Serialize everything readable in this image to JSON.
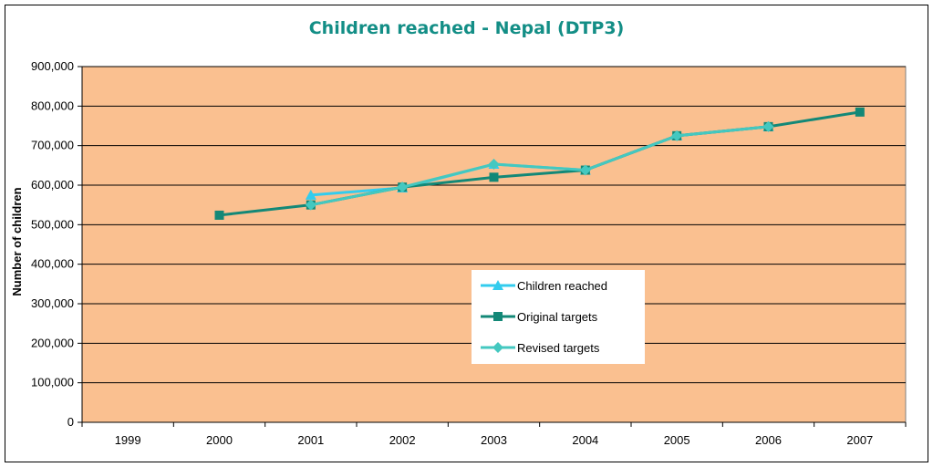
{
  "chart_data": {
    "type": "line",
    "title": "Children reached - Nepal (DTP3)",
    "xlabel": "",
    "ylabel": "Number of children",
    "categories": [
      "1999",
      "2000",
      "2001",
      "2002",
      "2003",
      "2004",
      "2005",
      "2006",
      "2007"
    ],
    "ylim": [
      0,
      900000
    ],
    "yticks": [
      "0",
      "100,000",
      "200,000",
      "300,000",
      "400,000",
      "500,000",
      "600,000",
      "700,000",
      "800,000",
      "900,000"
    ],
    "grid": true,
    "legend_position": "center-right",
    "plot_background": "#fac090",
    "series": [
      {
        "name": "Children reached",
        "marker": "triangle",
        "color": "#33ccee",
        "values": [
          null,
          null,
          575000,
          593000,
          653000,
          638000,
          725000,
          748000,
          null
        ]
      },
      {
        "name": "Original targets",
        "marker": "square",
        "color": "#138877",
        "values": [
          null,
          524000,
          550000,
          595000,
          620000,
          638000,
          725000,
          748000,
          785000
        ]
      },
      {
        "name": "Revised targets",
        "marker": "diamond",
        "color": "#44c8c0",
        "values": [
          null,
          null,
          550000,
          595000,
          653000,
          638000,
          725000,
          748000,
          null
        ]
      }
    ]
  }
}
